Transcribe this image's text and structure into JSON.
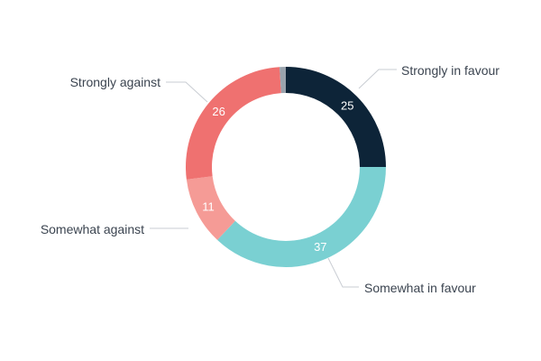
{
  "chart_data": {
    "type": "pie",
    "style": "donut",
    "grid": false,
    "legend": "none",
    "slices": [
      {
        "label": "Strongly in favour",
        "value": 25,
        "color": "#0d2438",
        "show_value": true
      },
      {
        "label": "Somewhat in favour",
        "value": 37,
        "color": "#7ad0d2",
        "show_value": true
      },
      {
        "label": "Somewhat against",
        "value": 11,
        "color": "#f59b96",
        "show_value": true
      },
      {
        "label": "Strongly against",
        "value": 26,
        "color": "#ef7170",
        "show_value": true
      },
      {
        "label": "",
        "value": 1,
        "color": "#9aa3ad",
        "show_value": false
      }
    ]
  }
}
